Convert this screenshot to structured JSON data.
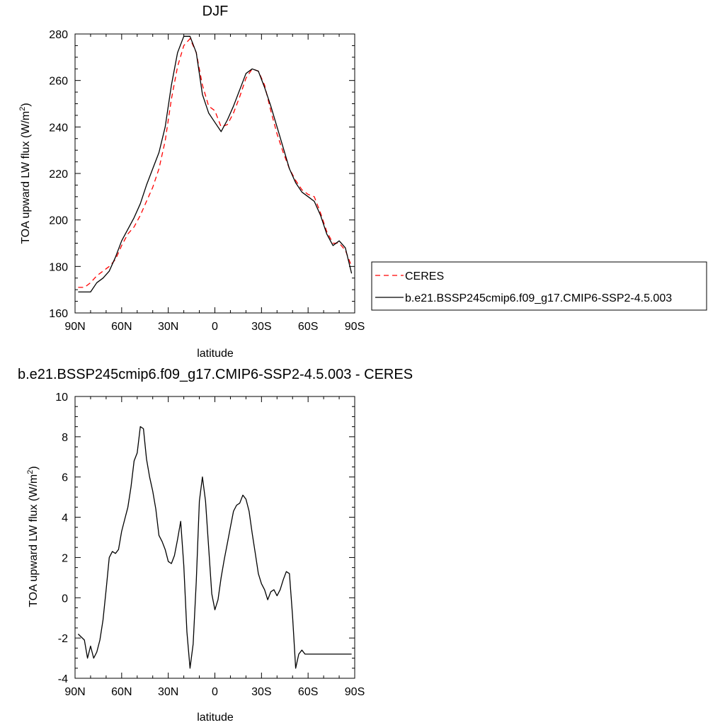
{
  "chart_data": [
    {
      "type": "line",
      "title": "DJF",
      "xlabel": "latitude",
      "ylabel": "TOA upward LW flux (W/m²)",
      "ylabel_main": "TOA upward LW flux (W/m",
      "ylabel_sup": "2",
      "ylabel_end": ")",
      "xlim": [
        -90,
        90
      ],
      "ylim": [
        160,
        280
      ],
      "xticks": [
        {
          "value": -90,
          "label": "90N"
        },
        {
          "value": -60,
          "label": "60N"
        },
        {
          "value": -30,
          "label": "30N"
        },
        {
          "value": 0,
          "label": "0"
        },
        {
          "value": 30,
          "label": "30S"
        },
        {
          "value": 60,
          "label": "60S"
        },
        {
          "value": 90,
          "label": "90S"
        }
      ],
      "yticks": [
        160,
        180,
        200,
        220,
        240,
        260,
        280
      ],
      "legend_position": "right",
      "series": [
        {
          "name": "CERES",
          "color": "#ff0000",
          "dash": "dashed",
          "x": [
            -88,
            -84,
            -80,
            -76,
            -72,
            -68,
            -64,
            -60,
            -56,
            -52,
            -48,
            -44,
            -40,
            -36,
            -32,
            -28,
            -24,
            -20,
            -16,
            -12,
            -8,
            -4,
            0,
            4,
            8,
            12,
            16,
            20,
            24,
            28,
            32,
            36,
            40,
            44,
            48,
            52,
            56,
            60,
            64,
            68,
            72,
            76,
            80,
            84,
            88
          ],
          "y": [
            171,
            171,
            173,
            176,
            178,
            180,
            183,
            189,
            194,
            197,
            202,
            208,
            214,
            222,
            234,
            252,
            266,
            275,
            278,
            272,
            258,
            249,
            247,
            240,
            241,
            246,
            253,
            261,
            265,
            264,
            258,
            247,
            237,
            229,
            222,
            217,
            213,
            211,
            210,
            203,
            195,
            190,
            190,
            187,
            180
          ]
        },
        {
          "name": "b.e21.BSSP245cmip6.f09_g17.CMIP6-SSP2-4.5.003",
          "color": "#000000",
          "dash": "solid",
          "x": [
            -88,
            -84,
            -80,
            -76,
            -72,
            -68,
            -64,
            -60,
            -56,
            -52,
            -48,
            -44,
            -40,
            -36,
            -32,
            -28,
            -24,
            -20,
            -16,
            -12,
            -8,
            -4,
            0,
            4,
            8,
            12,
            16,
            20,
            24,
            28,
            32,
            36,
            40,
            44,
            48,
            52,
            56,
            60,
            64,
            68,
            72,
            76,
            80,
            84,
            88
          ],
          "y": [
            169,
            169,
            169,
            173,
            175,
            178,
            184,
            191,
            196,
            201,
            207,
            215,
            222,
            229,
            240,
            258,
            272,
            279,
            279,
            272,
            254,
            246,
            242,
            238,
            243,
            249,
            256,
            263,
            265,
            264,
            257,
            249,
            240,
            231,
            222,
            216,
            212,
            210,
            208,
            202,
            194,
            189,
            191,
            188,
            177
          ]
        }
      ]
    },
    {
      "type": "line",
      "title": "b.e21.BSSP245cmip6.f09_g17.CMIP6-SSP2-4.5.003 - CERES",
      "xlabel": "latitude",
      "ylabel": "TOA upward LW flux (W/m²)",
      "ylabel_main": "TOA upward LW flux (W/m",
      "ylabel_sup": "2",
      "ylabel_end": ")",
      "xlim": [
        -90,
        90
      ],
      "ylim": [
        -4,
        10
      ],
      "xticks": [
        {
          "value": -90,
          "label": "90N"
        },
        {
          "value": -60,
          "label": "60N"
        },
        {
          "value": -30,
          "label": "30N"
        },
        {
          "value": 0,
          "label": "0"
        },
        {
          "value": 30,
          "label": "30S"
        },
        {
          "value": 60,
          "label": "60S"
        },
        {
          "value": 90,
          "label": "90S"
        }
      ],
      "yticks": [
        -4,
        -2,
        0,
        2,
        4,
        6,
        8,
        10
      ],
      "series": [
        {
          "color": "#000000",
          "dash": "solid",
          "x": [
            -88,
            -84,
            -82,
            -80,
            -78,
            -76,
            -74,
            -72,
            -70,
            -68,
            -66,
            -64,
            -62,
            -60,
            -58,
            -56,
            -54,
            -52,
            -50,
            -48,
            -46,
            -44,
            -42,
            -40,
            -38,
            -36,
            -34,
            -32,
            -30,
            -28,
            -26,
            -24,
            -22,
            -20,
            -18,
            -16,
            -14,
            -12,
            -10,
            -8,
            -6,
            -4,
            -2,
            0,
            2,
            4,
            6,
            8,
            10,
            12,
            14,
            16,
            18,
            20,
            22,
            24,
            26,
            28,
            30,
            32,
            34,
            36,
            38,
            40,
            42,
            44,
            46,
            48,
            50,
            52,
            54,
            56,
            58,
            60,
            62,
            64,
            66,
            68,
            70,
            72,
            74,
            76,
            78,
            80,
            82,
            84,
            86,
            88
          ],
          "y": [
            -1.8,
            -2.1,
            -3.0,
            -2.4,
            -3.0,
            -2.7,
            -2.1,
            -1.1,
            0.4,
            2.0,
            2.3,
            2.2,
            2.4,
            3.3,
            3.9,
            4.5,
            5.5,
            6.8,
            7.2,
            8.5,
            8.4,
            6.9,
            6.0,
            5.3,
            4.4,
            3.1,
            2.8,
            2.4,
            1.8,
            1.7,
            2.1,
            2.9,
            3.8,
            1.6,
            -1.7,
            -3.5,
            -2.3,
            0.8,
            4.8,
            6.0,
            4.8,
            2.5,
            0.2,
            -0.6,
            -0.1,
            1.0,
            1.9,
            2.7,
            3.5,
            4.3,
            4.6,
            4.7,
            5.1,
            4.9,
            4.3,
            3.2,
            2.2,
            1.2,
            0.7,
            0.4,
            -0.1,
            0.3,
            0.4,
            0.1,
            0.4,
            0.9,
            1.3,
            1.2,
            -0.9,
            -3.5,
            -2.8,
            -2.6,
            -2.8,
            -2.8,
            -2.8,
            -2.8,
            -2.8,
            -2.8,
            -2.8,
            -2.8,
            -2.8,
            -2.8,
            -2.8,
            -2.8,
            -2.8,
            -2.8,
            -2.8,
            -2.8
          ]
        }
      ]
    }
  ]
}
